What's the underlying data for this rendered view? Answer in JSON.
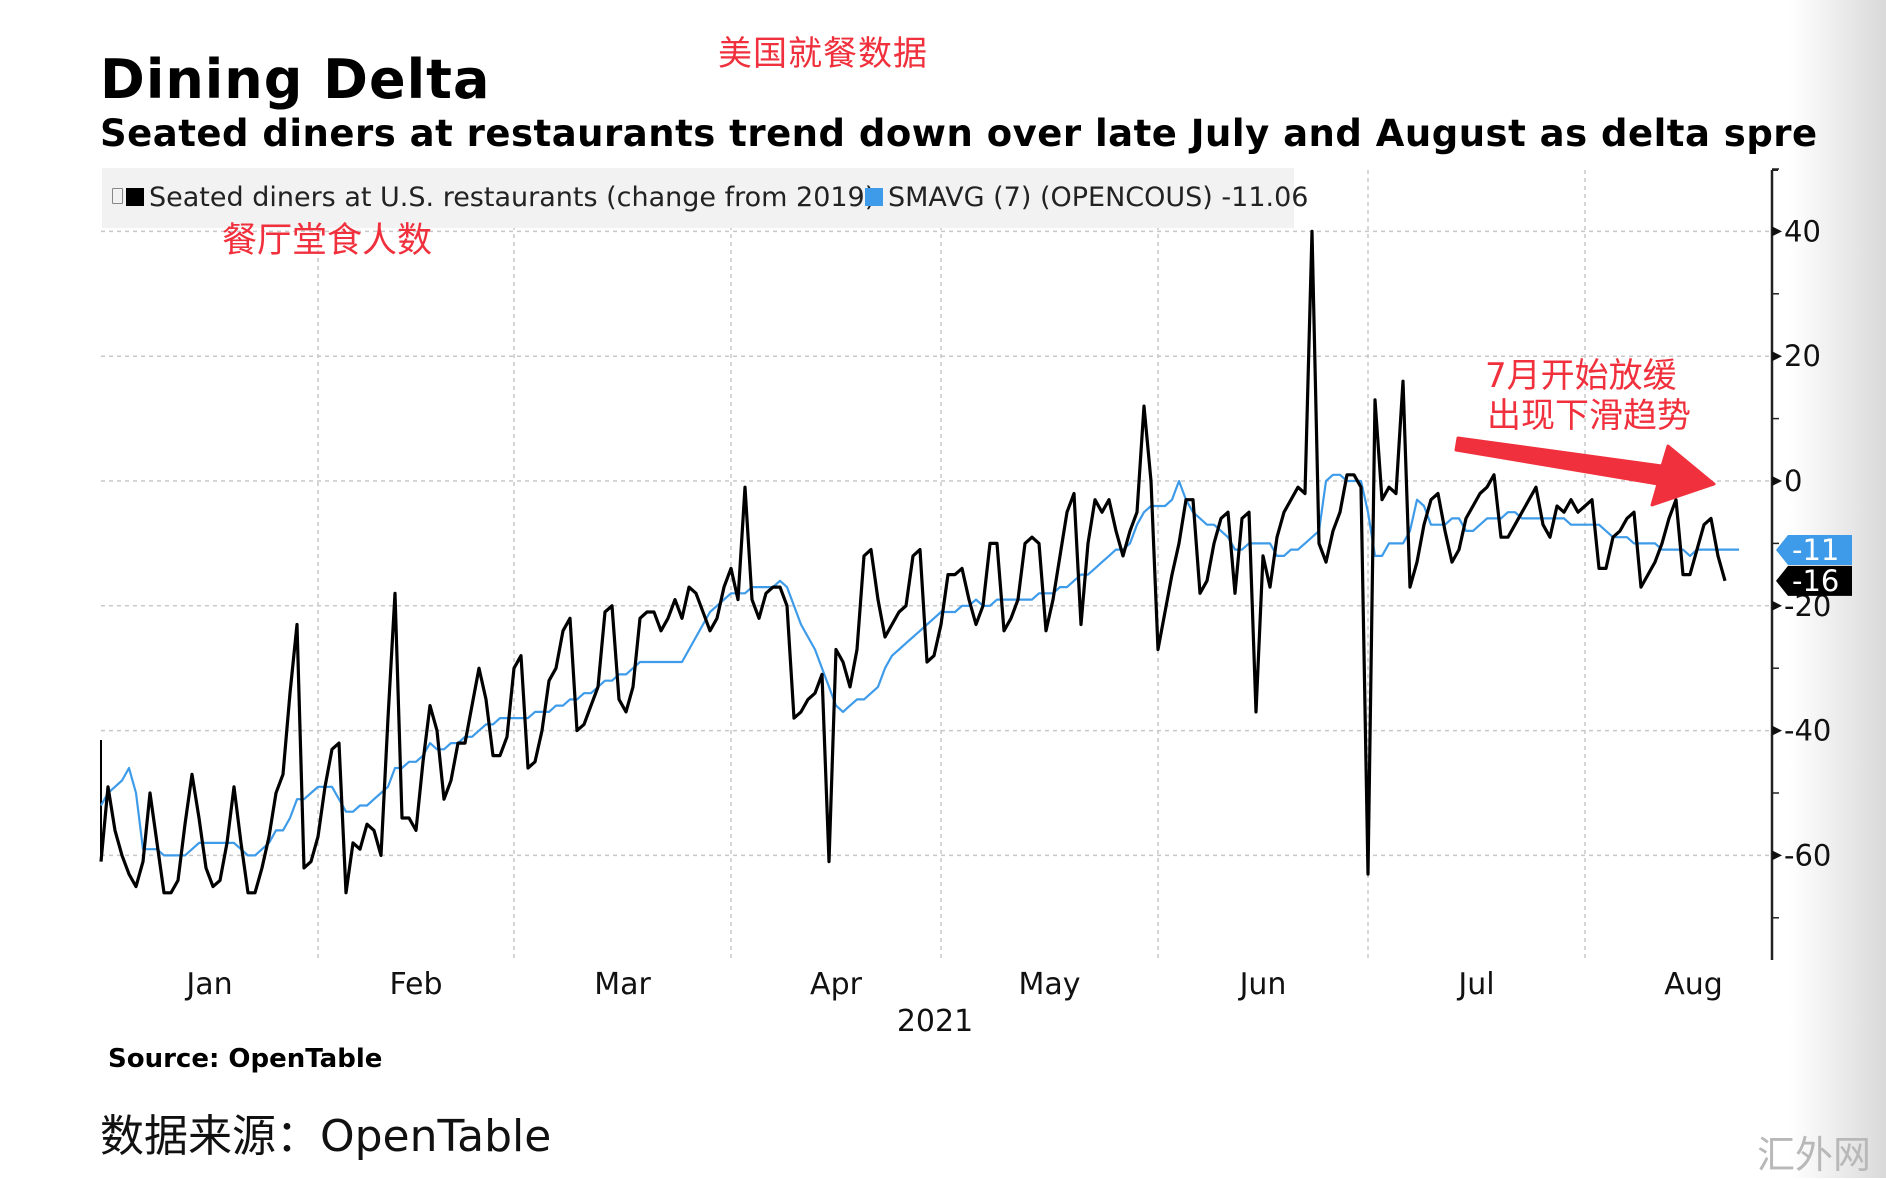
{
  "annotations": {
    "cn_title": "美国就餐数据",
    "cn_legend": "餐厅堂食人数",
    "cn_note_line1": "7月开始放缓",
    "cn_note_line2": "出现下滑趋势",
    "cn_source": "数据来源：OpenTable",
    "watermark": "汇外网"
  },
  "colors": {
    "series_main": "#000000",
    "series_smavg": "#3d9be9",
    "annotation_red": "#f0303c",
    "legend_bg": "#f2f2f2",
    "grid": "#c8c8c8"
  },
  "chart_data": {
    "type": "line",
    "title": "Dining Delta",
    "subtitle": "Seated diners at restaurants trend down over late July and August as delta spre",
    "source": "Source: OpenTable",
    "xlabel": "2021",
    "ylabel": "",
    "ylim": [
      -77,
      50
    ],
    "y_ticks": [
      40,
      20,
      0,
      -20,
      -40,
      -60
    ],
    "y_tick_labels": [
      "40",
      "20",
      "0",
      "-20",
      "-40",
      "-60"
    ],
    "x_tick_labels": [
      "Jan",
      "Feb",
      "Mar",
      "Apr",
      "May",
      "Jun",
      "Jul",
      "Aug"
    ],
    "x_year_label": "2021",
    "x_start": "2021-01-01",
    "month_start_days": [
      0,
      31,
      59,
      90,
      120,
      151,
      181,
      212
    ],
    "grid": true,
    "legend_position": "top-left",
    "legend": [
      {
        "name": "Seated diners at U.S. restaurants (change from 2019)",
        "color": "#000000"
      },
      {
        "name": "SMAVG (7) (OPENCOUS) -11.06",
        "color": "#3d9be9"
      }
    ],
    "last_values": {
      "series": -16,
      "smavg": -11.06
    },
    "last_value_labels": {
      "series": "-16",
      "smavg": "-11"
    },
    "series": [
      {
        "name": "Seated diners at U.S. restaurants (change from 2019)",
        "values": [
          -61,
          -49,
          -56,
          -60,
          -63,
          -65,
          -61,
          -50,
          -58,
          -66,
          -66,
          -64,
          -55,
          -47,
          -54,
          -62,
          -65,
          -64,
          -58,
          -49,
          -58,
          -66,
          -66,
          -62,
          -57,
          -50,
          -47,
          -34,
          -23,
          -62,
          -61,
          -57,
          -49,
          -43,
          -42,
          -66,
          -58,
          -59,
          -55,
          -56,
          -60,
          -38,
          -18,
          -54,
          -54,
          -56,
          -45,
          -36,
          -40,
          -51,
          -48,
          -42,
          -42,
          -36,
          -30,
          -35,
          -44,
          -44,
          -41,
          -30,
          -28,
          -46,
          -45,
          -40,
          -32,
          -30,
          -24,
          -22,
          -40,
          -39,
          -36,
          -33,
          -21,
          -20,
          -35,
          -37,
          -33,
          -22,
          -21,
          -21,
          -24,
          -22,
          -19,
          -22,
          -17,
          -18,
          -21,
          -24,
          -22,
          -17,
          -14,
          -19,
          -1,
          -19,
          -22,
          -18,
          -17,
          -17,
          -20,
          -38,
          -37,
          -35,
          -34,
          -31,
          -61,
          -27,
          -29,
          -33,
          -27,
          -12,
          -11,
          -19,
          -25,
          -23,
          -21,
          -20,
          -12,
          -11,
          -29,
          -28,
          -23,
          -15,
          -15,
          -14,
          -19,
          -23,
          -20,
          -10,
          -10,
          -24,
          -22,
          -19,
          -10,
          -9,
          -10,
          -24,
          -19,
          -12,
          -5,
          -2,
          -23,
          -10,
          -3,
          -5,
          -3,
          -8,
          -12,
          -8,
          -5,
          12,
          0,
          -27,
          -21,
          -15,
          -10,
          -3,
          -3,
          -18,
          -16,
          -10,
          -6,
          -5,
          -18,
          -6,
          -5,
          -37,
          -12,
          -17,
          -9,
          -5,
          -3,
          -1,
          -2,
          40,
          -10,
          -13,
          -8,
          -5,
          1,
          1,
          -1,
          -63,
          13,
          -3,
          -1,
          -2,
          16,
          -17,
          -13,
          -7,
          -3,
          -2,
          -8,
          -13,
          -11,
          -6,
          -4,
          -2,
          -1,
          1,
          -9,
          -9,
          -7,
          -5,
          -3,
          -1,
          -7,
          -9,
          -4,
          -5,
          -3,
          -5,
          -4,
          -3,
          -14,
          -14,
          -9,
          -8,
          -6,
          -5,
          -17,
          -15,
          -13,
          -10,
          -6,
          -3,
          -15,
          -15,
          -11,
          -7,
          -6,
          -12,
          -16
        ]
      },
      {
        "name": "SMAVG (7) (OPENCOUS)",
        "values": [
          -52,
          -50,
          -49,
          -48,
          -46,
          -50,
          -59,
          -59,
          -59,
          -60,
          -60,
          -60,
          -60,
          -59,
          -58,
          -58,
          -58,
          -58,
          -58,
          -58,
          -59,
          -60,
          -60,
          -59,
          -58,
          -56,
          -56,
          -54,
          -51,
          -51,
          -50,
          -49,
          -49,
          -49,
          -51,
          -53,
          -53,
          -52,
          -52,
          -51,
          -50,
          -49,
          -46,
          -46,
          -45,
          -45,
          -44,
          -42,
          -43,
          -43,
          -42,
          -42,
          -41,
          -41,
          -40,
          -39,
          -39,
          -38,
          -38,
          -38,
          -38,
          -38,
          -37,
          -37,
          -37,
          -36,
          -36,
          -35,
          -35,
          -34,
          -34,
          -33,
          -32,
          -32,
          -31,
          -31,
          -30,
          -29,
          -29,
          -29,
          -29,
          -29,
          -29,
          -29,
          -27,
          -25,
          -23,
          -21,
          -20,
          -19,
          -18,
          -18,
          -18,
          -17,
          -17,
          -17,
          -17,
          -16,
          -17,
          -20,
          -23,
          -25,
          -27,
          -30,
          -33,
          -36,
          -37,
          -36,
          -35,
          -35,
          -34,
          -33,
          -30,
          -28,
          -27,
          -26,
          -25,
          -24,
          -23,
          -22,
          -21,
          -21,
          -21,
          -20,
          -20,
          -19,
          -20,
          -20,
          -19,
          -19,
          -19,
          -19,
          -19,
          -19,
          -18,
          -18,
          -18,
          -17,
          -17,
          -16,
          -15,
          -15,
          -14,
          -13,
          -12,
          -11,
          -11,
          -10,
          -7,
          -5,
          -4,
          -4,
          -4,
          -3,
          0,
          -3,
          -5,
          -6,
          -7,
          -7,
          -8,
          -9,
          -11,
          -11,
          -10,
          -10,
          -10,
          -10,
          -12,
          -12,
          -11,
          -11,
          -10,
          -9,
          -8,
          0,
          1,
          1,
          0,
          0,
          0,
          -5,
          -12,
          -12,
          -10,
          -10,
          -10,
          -8,
          -3,
          -4,
          -7,
          -7,
          -7,
          -6,
          -6,
          -8,
          -8,
          -7,
          -6,
          -6,
          -6,
          -5,
          -5,
          -6,
          -6,
          -6,
          -6,
          -6,
          -6,
          -6,
          -7,
          -7,
          -7,
          -7,
          -7,
          -8,
          -9,
          -9,
          -9,
          -10,
          -10,
          -10,
          -10,
          -11,
          -11,
          -11,
          -11,
          -12,
          -11,
          -11,
          -11,
          -11,
          -11,
          -11,
          -11
        ]
      }
    ]
  }
}
